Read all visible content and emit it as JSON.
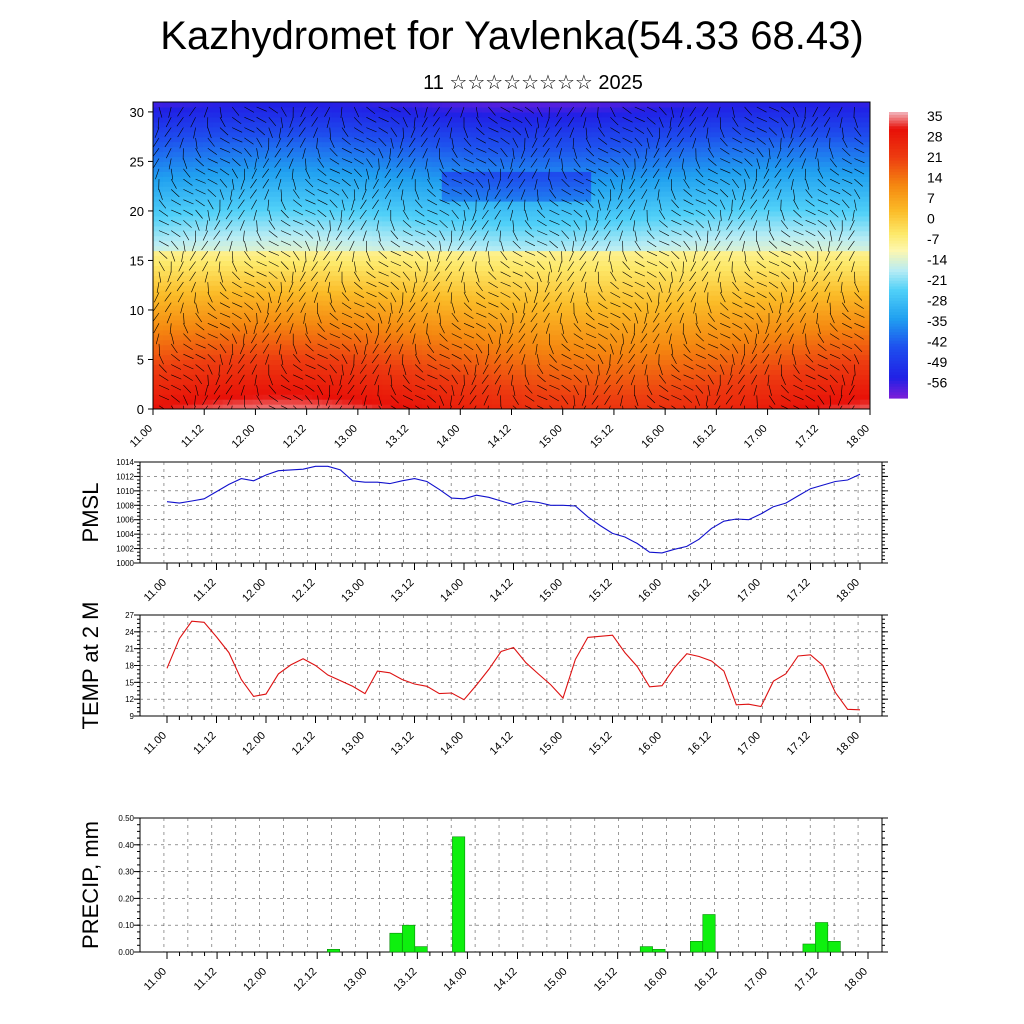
{
  "page": {
    "title": "Kazhydromet for Yavlenka(54.33 68.43)",
    "subtitle": "11 ☆☆☆☆☆☆☆☆ 2025"
  },
  "chart_data": [
    {
      "type": "heatmap",
      "name": "vertical-section",
      "x_ticks": [
        "11.00",
        "11.12",
        "12.00",
        "12.12",
        "13.00",
        "13.12",
        "14.00",
        "14.12",
        "15.00",
        "15.12",
        "16.00",
        "16.12",
        "17.00",
        "17.12",
        "18.00"
      ],
      "y_ticks": [
        "0",
        "5",
        "10",
        "15",
        "20",
        "25",
        "30"
      ],
      "ylim": [
        0,
        31
      ],
      "colorbar_labels": [
        "35",
        "28",
        "21",
        "14",
        "7",
        "0",
        "-7",
        "-14",
        "-21",
        "-28",
        "-35",
        "-42",
        "-49",
        "-56"
      ],
      "colorbar_range": [
        -63,
        38
      ],
      "colors": {
        "warm": "#e81a0a",
        "yellow": "#fdf07c",
        "cold": "#1e2ae8"
      }
    },
    {
      "type": "line",
      "name": "pmsl",
      "ylabel": "PMSL",
      "ylim": [
        1000,
        1014
      ],
      "y_ticks": [
        "1000",
        "1002",
        "1004",
        "1006",
        "1008",
        "1010",
        "1012",
        "1014"
      ],
      "x_ticks": [
        "11.00",
        "11.12",
        "12.00",
        "12.12",
        "13.00",
        "13.12",
        "14.00",
        "14.12",
        "15.00",
        "15.12",
        "16.00",
        "16.12",
        "17.00",
        "17.12",
        "18.00"
      ],
      "color": "#1010cc",
      "series": [
        {
          "values": [
            1008.5,
            1008.3,
            1008.6,
            1008.9,
            1009.9,
            1010.9,
            1011.7,
            1011.4,
            1012.2,
            1012.8,
            1012.9,
            1013.0,
            1013.4,
            1013.4,
            1012.9,
            1011.4,
            1011.2,
            1011.2,
            1011.0,
            1011.4,
            1011.7,
            1011.3,
            1010.2,
            1009.0,
            1008.9,
            1009.4,
            1009.1,
            1008.6,
            1008.1,
            1008.6,
            1008.4,
            1008.0,
            1008.0,
            1007.9,
            1006.4,
            1005.2,
            1004.1,
            1003.6,
            1002.7,
            1001.5,
            1001.4,
            1001.9,
            1002.3,
            1003.3,
            1004.8,
            1005.8,
            1006.1,
            1006.0,
            1006.8,
            1007.8,
            1008.3,
            1009.3,
            1010.3,
            1010.8,
            1011.3,
            1011.5,
            1012.3
          ]
        }
      ]
    },
    {
      "type": "line",
      "name": "temp-2m",
      "ylabel": "TEMP at 2 M",
      "ylim": [
        9,
        27
      ],
      "y_ticks": [
        "9",
        "12",
        "15",
        "18",
        "21",
        "24",
        "27"
      ],
      "x_ticks": [
        "11.00",
        "11.12",
        "12.00",
        "12.12",
        "13.00",
        "13.12",
        "14.00",
        "14.12",
        "15.00",
        "15.12",
        "16.00",
        "16.12",
        "17.00",
        "17.12",
        "18.00"
      ],
      "color": "#dd1111",
      "series": [
        {
          "values": [
            17.5,
            22.8,
            25.9,
            25.7,
            23.1,
            20.3,
            15.5,
            12.5,
            12.9,
            16.5,
            18.1,
            19.2,
            18.0,
            16.3,
            15.3,
            14.3,
            13.0,
            17.0,
            16.7,
            15.5,
            14.7,
            14.3,
            13.0,
            13.1,
            11.9,
            14.5,
            17.3,
            20.5,
            21.2,
            18.5,
            16.5,
            14.6,
            12.2,
            19.1,
            23.0,
            23.2,
            23.4,
            20.3,
            17.8,
            14.2,
            14.4,
            17.6,
            20.1,
            19.6,
            18.8,
            17.0,
            11.0,
            11.1,
            10.7,
            15.2,
            16.5,
            19.7,
            19.9,
            18.0,
            13.2,
            10.2,
            10.1
          ]
        }
      ]
    },
    {
      "type": "bar",
      "name": "precip",
      "ylabel": "PRECIP, mm",
      "ylim": [
        0,
        0.5
      ],
      "y_ticks": [
        "0.00",
        "0.10",
        "0.20",
        "0.30",
        "0.40",
        "0.50"
      ],
      "x_ticks": [
        "11.00",
        "11.12",
        "12.00",
        "12.12",
        "13.00",
        "13.12",
        "14.00",
        "14.12",
        "15.00",
        "15.12",
        "16.00",
        "16.12",
        "17.00",
        "17.12",
        "18.00"
      ],
      "color": "#0ef00e",
      "series": [
        {
          "values": [
            0,
            0,
            0,
            0,
            0,
            0,
            0,
            0,
            0,
            0,
            0,
            0,
            0,
            0.01,
            0,
            0,
            0,
            0,
            0.07,
            0.1,
            0.02,
            0,
            0,
            0.43,
            0,
            0,
            0,
            0,
            0,
            0,
            0,
            0,
            0,
            0,
            0,
            0,
            0,
            0,
            0.02,
            0.01,
            0,
            0,
            0.04,
            0.14,
            0,
            0,
            0,
            0,
            0,
            0,
            0,
            0.03,
            0.11,
            0.04,
            0,
            0
          ]
        }
      ]
    }
  ]
}
